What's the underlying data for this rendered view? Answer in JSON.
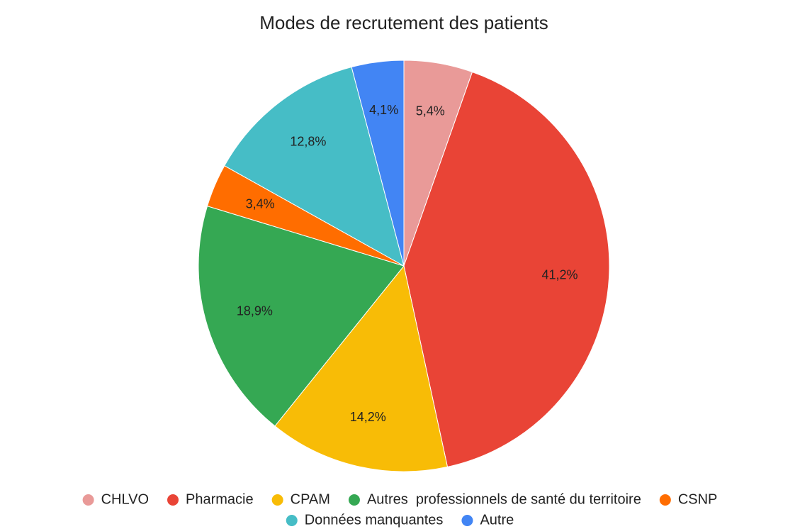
{
  "chart_data": {
    "type": "pie",
    "title": "Modes de recrutement des patients",
    "categories": [
      "CHLVO",
      "Pharmacie",
      "CPAM",
      "Autres  professionnels de santé du territoire",
      "CSNP",
      "Données manquantes",
      "Autre"
    ],
    "values": [
      5.4,
      41.2,
      14.2,
      18.9,
      3.4,
      12.8,
      4.1
    ],
    "value_labels": [
      "5,4%",
      "41,2%",
      "14,2%",
      "18,9%",
      "3,4%",
      "12,8%",
      "4,1%"
    ],
    "colors": [
      "#e99a98",
      "#e94436",
      "#f8bc06",
      "#35a853",
      "#ff6d00",
      "#46bdc6",
      "#4285f4"
    ],
    "legend": "bottom"
  }
}
